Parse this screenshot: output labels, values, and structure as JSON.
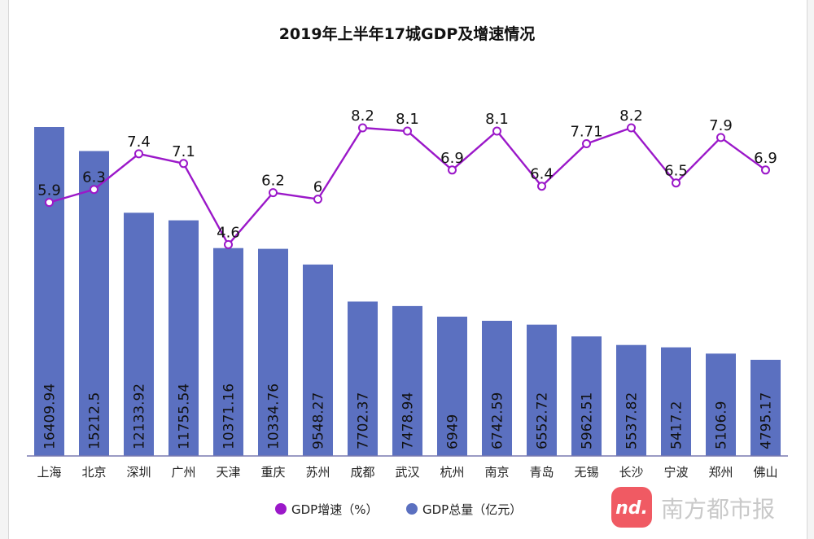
{
  "chart_data": {
    "type": "bar+line",
    "title": "2019年上半年17城GDP及增速情况",
    "categories": [
      "上海",
      "北京",
      "深圳",
      "广州",
      "天津",
      "重庆",
      "苏州",
      "成都",
      "武汉",
      "杭州",
      "南京",
      "青岛",
      "无锡",
      "长沙",
      "宁波",
      "郑州",
      "佛山"
    ],
    "series": [
      {
        "name": "GDP总量（亿元）",
        "kind": "bar",
        "values": [
          16409.94,
          15212.5,
          12133.92,
          11755.54,
          10371.16,
          10334.76,
          9548.27,
          7702.37,
          7478.94,
          6949,
          6742.59,
          6552.72,
          5962.51,
          5537.82,
          5417.2,
          5106.9,
          4795.17
        ],
        "labels": [
          "16409.94",
          "15212.5",
          "12133.92",
          "11755.54",
          "10371.16",
          "10334.76",
          "9548.27",
          "7702.37",
          "7478.94",
          "6949",
          "6742.59",
          "6552.72",
          "5962.51",
          "5537.82",
          "5417.2",
          "5106.9",
          "4795.17"
        ],
        "color": "#5b70c0"
      },
      {
        "name": "GDP增速（%）",
        "kind": "line",
        "values": [
          5.9,
          6.3,
          7.4,
          7.1,
          4.6,
          6.2,
          6,
          8.2,
          8.1,
          6.9,
          8.1,
          6.4,
          7.71,
          8.2,
          6.5,
          7.9,
          6.9
        ],
        "labels": [
          "5.9",
          "6.3",
          "7.4",
          "7.1",
          "4.6",
          "6.2",
          "6",
          "8.2",
          "8.1",
          "6.9",
          "8.1",
          "6.4",
          "7.71",
          "8.2",
          "6.5",
          "7.9",
          "6.9"
        ],
        "color": "#9b18c9"
      }
    ],
    "bar_ylim": [
      0,
      16410
    ],
    "line_ylim": [
      2.6,
      8.2
    ],
    "grid": false,
    "legend": "bottom-center"
  },
  "legend": {
    "growth_label": "GDP增速（%）",
    "total_label": "GDP总量（亿元）"
  },
  "watermark": {
    "text": "南方都市报",
    "icon_text": "nd."
  },
  "colors": {
    "bar": "#5b70c0",
    "line": "#9b18c9",
    "watermark_icon": "#f05a63"
  }
}
